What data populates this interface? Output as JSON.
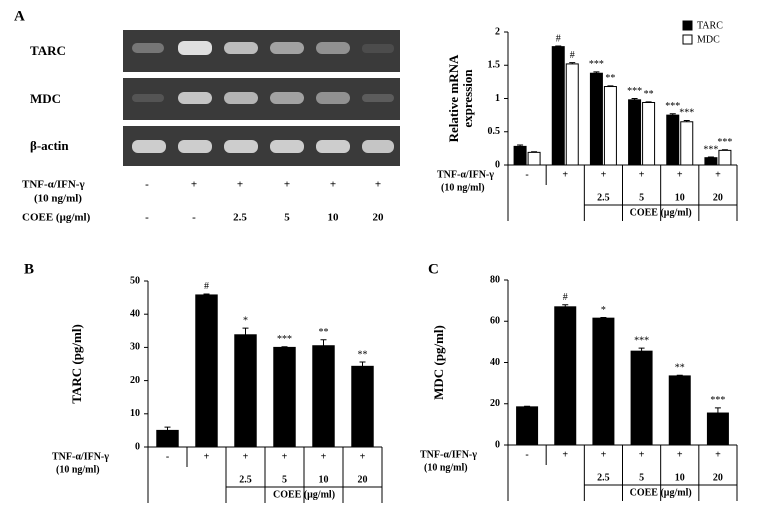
{
  "gel": {
    "label": "A",
    "rows": [
      "TARC",
      "MDC",
      "β-actin"
    ],
    "treatment": {
      "label": [
        "TNF-α/IFN-γ",
        "(10 ng/ml)"
      ],
      "signs": [
        "-",
        "+",
        "+",
        "+",
        "+",
        "+"
      ],
      "dose_label": "COEE (μg/ml)",
      "doses": [
        "-",
        "-",
        2.5,
        5,
        10,
        20
      ]
    }
  },
  "chart_data": [
    {
      "type": "bar",
      "ylabel": [
        "Relative mRNA",
        "expression"
      ],
      "ylim": [
        0,
        2
      ],
      "yticks": [
        0,
        0.5,
        1,
        1.5,
        2
      ],
      "legend": "upper right",
      "series": [
        {
          "name": "TARC",
          "color": "#000000",
          "values": [
            0.28,
            1.78,
            1.38,
            0.98,
            0.75,
            0.11
          ],
          "errors": [
            0.02,
            0.01,
            0.02,
            0.02,
            0.02,
            0.01
          ],
          "annotations": [
            null,
            "#",
            "***",
            "***",
            "***",
            "***"
          ]
        },
        {
          "name": "MDC",
          "color": "#ffffff",
          "values": [
            0.19,
            1.52,
            1.18,
            0.94,
            0.65,
            0.22
          ],
          "errors": [
            0.01,
            0.02,
            0.01,
            0.01,
            0.02,
            0.01
          ],
          "annotations": [
            null,
            "#",
            "**",
            "**",
            "***",
            "***"
          ]
        }
      ],
      "treatment": {
        "label": [
          "TNF-α/IFN-γ",
          "(10 ng/ml)"
        ],
        "signs": [
          "-",
          "+",
          "+",
          "+",
          "+",
          "+"
        ],
        "dose_label": "COEE (μg/ml)",
        "doses": [
          null,
          null,
          2.5,
          5,
          10,
          20
        ]
      }
    },
    {
      "type": "bar",
      "panel": "B",
      "ylabel": [
        "TARC (pg/ml)"
      ],
      "ylim": [
        0,
        50
      ],
      "yticks": [
        0,
        10,
        20,
        30,
        40,
        50
      ],
      "color": "#000000",
      "values": [
        5.0,
        45.8,
        33.8,
        30.0,
        30.5,
        24.3
      ],
      "errors": [
        1.0,
        0.3,
        2.0,
        0.2,
        1.8,
        1.3
      ],
      "annotations": [
        null,
        "#",
        "*",
        "***",
        "**",
        "**"
      ],
      "treatment": {
        "label": [
          "TNF-α/IFN-γ",
          "(10 ng/ml)"
        ],
        "signs": [
          "-",
          "+",
          "+",
          "+",
          "+",
          "+"
        ],
        "dose_label": "COEE (μg/ml)",
        "doses": [
          null,
          null,
          2.5,
          5,
          10,
          20
        ]
      }
    },
    {
      "type": "bar",
      "panel": "C",
      "ylabel": [
        "MDC (pg/ml)"
      ],
      "ylim": [
        0,
        80
      ],
      "yticks": [
        0,
        20,
        40,
        60,
        80
      ],
      "color": "#000000",
      "values": [
        18.5,
        67,
        61.5,
        45.5,
        33.5,
        15.5
      ],
      "errors": [
        0.3,
        1.0,
        0.3,
        1.5,
        0.3,
        2.5
      ],
      "annotations": [
        null,
        "#",
        "*",
        "***",
        "**",
        "***"
      ],
      "treatment": {
        "label": [
          "TNF-α/IFN-γ",
          "(10 ng/ml)"
        ],
        "signs": [
          "-",
          "+",
          "+",
          "+",
          "+",
          "+"
        ],
        "dose_label": "COEE (μg/ml)",
        "doses": [
          null,
          null,
          2.5,
          5,
          10,
          20
        ]
      }
    }
  ]
}
